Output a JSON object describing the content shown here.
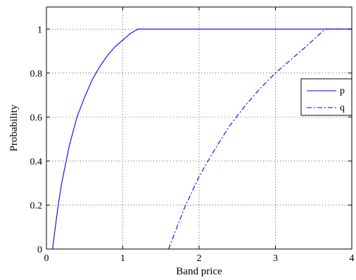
{
  "chart_data": {
    "type": "line",
    "xlabel": "Band price",
    "ylabel": "Probability",
    "xlim": [
      0,
      4
    ],
    "ylim": [
      0,
      1.1
    ],
    "x_ticks": [
      0,
      1,
      2,
      3,
      4
    ],
    "y_ticks": [
      0,
      0.2,
      0.4,
      0.6,
      0.8,
      1
    ],
    "x_tick_labels": [
      "0",
      "1",
      "2",
      "3",
      "4"
    ],
    "y_tick_labels": [
      "0",
      "0.2",
      "0.4",
      "0.6",
      "0.8",
      "1"
    ],
    "grid": true,
    "legend_position": "right",
    "series": [
      {
        "name": "p",
        "color": "#0000ff",
        "line_style": "solid",
        "x": [
          0.08,
          0.15,
          0.2,
          0.3,
          0.4,
          0.5,
          0.6,
          0.7,
          0.8,
          0.9,
          1.0,
          1.1,
          1.2,
          1.5,
          2.0,
          2.5,
          3.0,
          3.5,
          4.0
        ],
        "y": [
          0.0,
          0.19,
          0.3,
          0.47,
          0.6,
          0.69,
          0.77,
          0.83,
          0.88,
          0.92,
          0.95,
          0.98,
          1.0,
          1.0,
          1.0,
          1.0,
          1.0,
          1.0,
          1.0
        ]
      },
      {
        "name": "q",
        "color": "#0000ff",
        "line_style": "dashdot",
        "x": [
          1.6,
          1.8,
          2.0,
          2.2,
          2.4,
          2.6,
          2.8,
          3.0,
          3.2,
          3.4,
          3.65,
          4.0
        ],
        "y": [
          0.0,
          0.18,
          0.33,
          0.45,
          0.56,
          0.65,
          0.73,
          0.8,
          0.86,
          0.92,
          1.0,
          1.0
        ]
      }
    ]
  }
}
